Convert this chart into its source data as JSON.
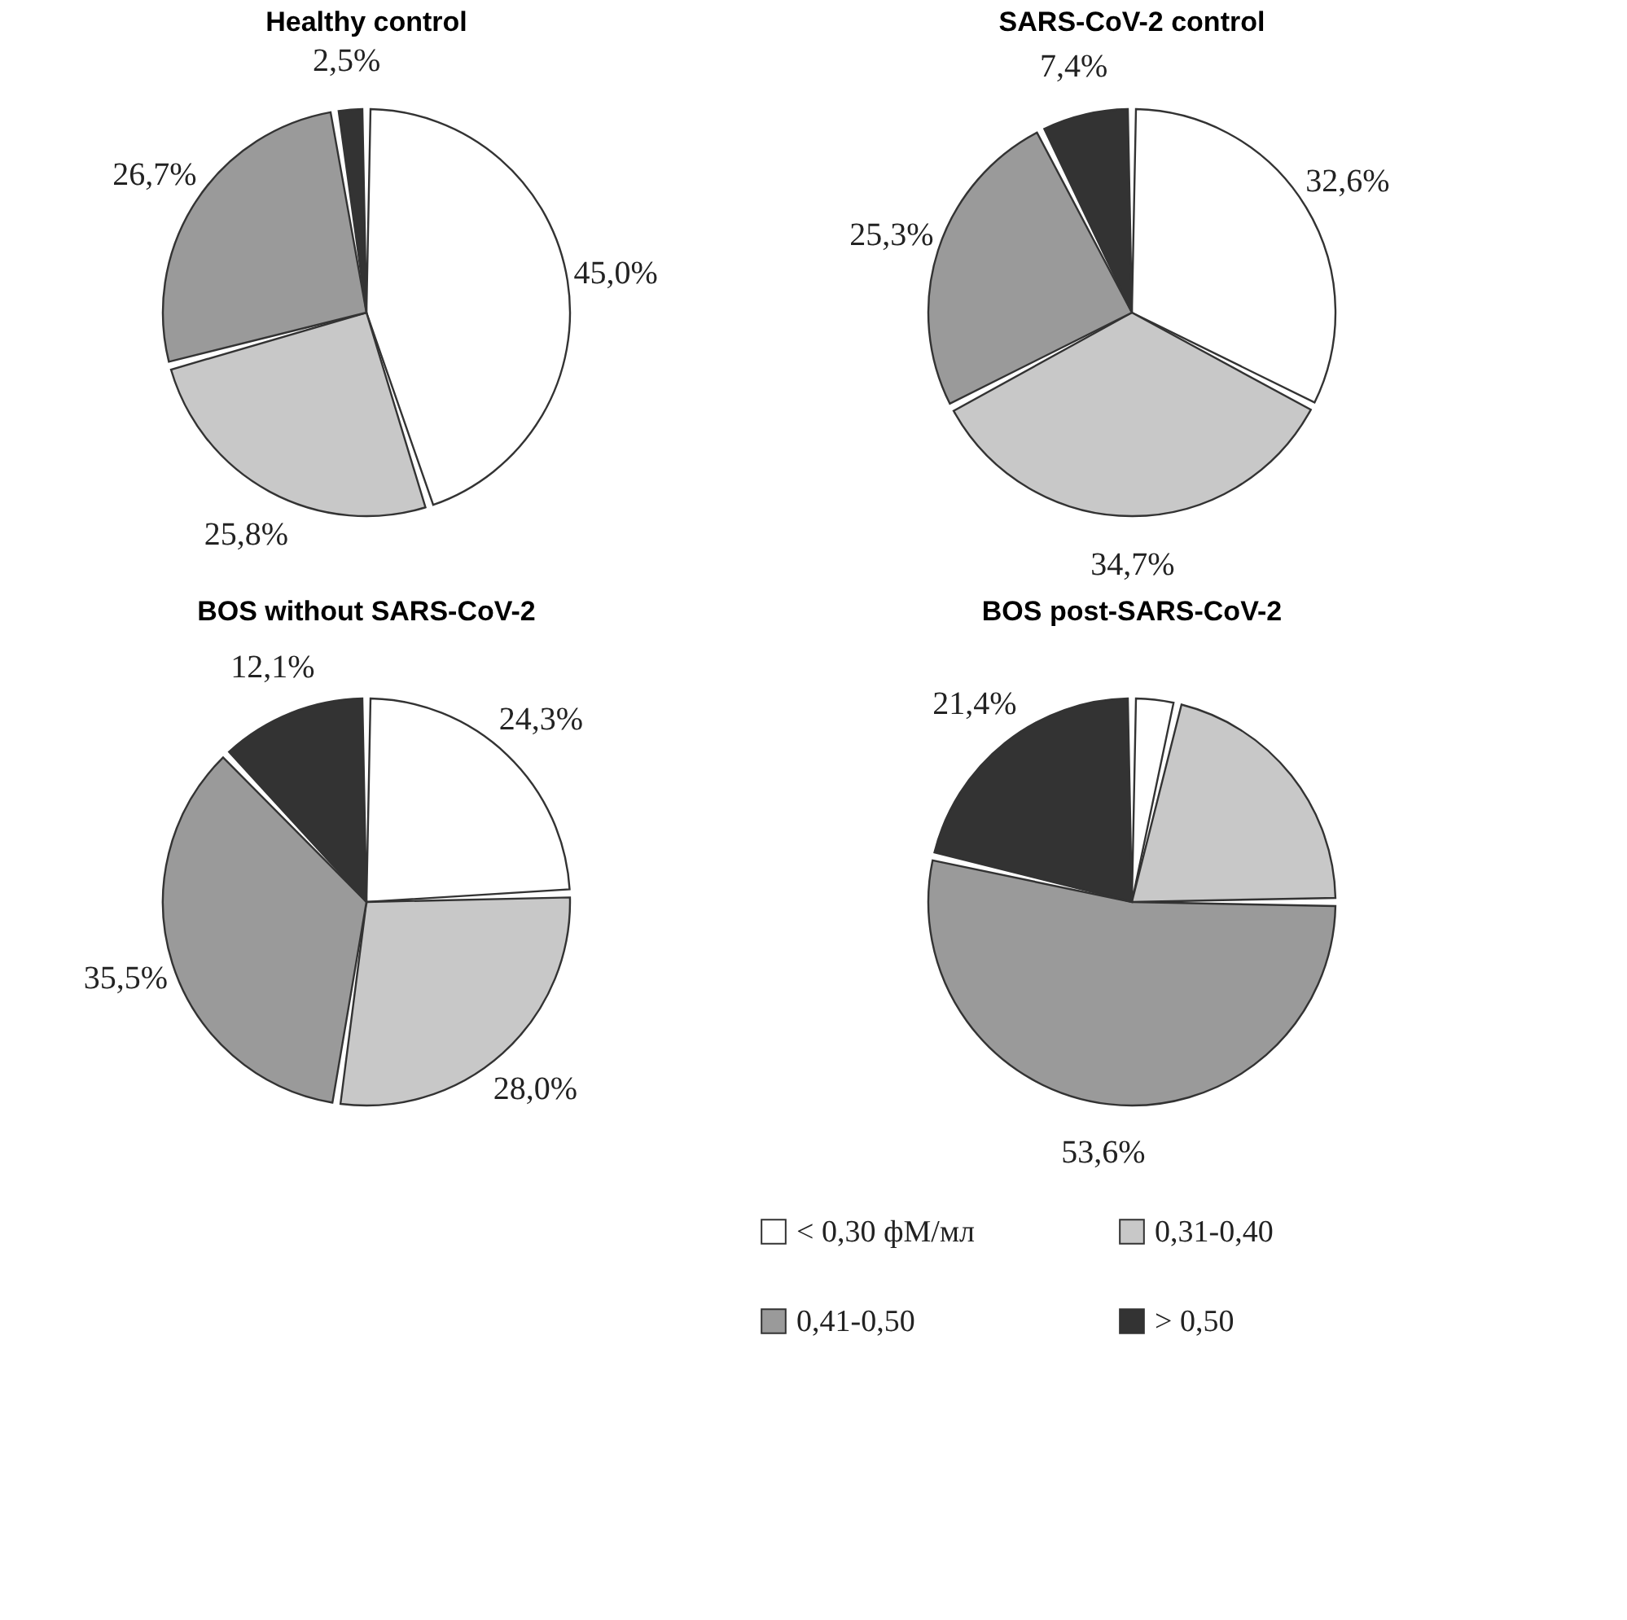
{
  "chart_data": [
    {
      "type": "pie",
      "title": "Healthy control",
      "categories": [
        "< 0,30 фМ/мл",
        "0,31-0,40",
        "0,41-0,50",
        "> 0,50"
      ],
      "values": [
        45.0,
        25.8,
        26.7,
        2.5
      ],
      "value_labels": [
        "45,0%",
        "25,8%",
        "26,7%",
        "2,5%"
      ],
      "colors": [
        "#ffffff",
        "#c8c8c8",
        "#9a9a9a",
        "#333333"
      ],
      "legend": "bottom right"
    },
    {
      "type": "pie",
      "title": "SARS-CoV-2 control",
      "categories": [
        null,
        null,
        null,
        null
      ],
      "values": [
        32.6,
        34.7,
        25.3,
        7.4
      ],
      "value_labels": [
        "32,6%",
        "34,7%",
        "25,3%",
        "7,4%"
      ],
      "colors": [
        "#ffffff",
        "#c8c8c8",
        "#9a9a9a",
        "#333333"
      ]
    },
    {
      "type": "pie",
      "title": "BOS without SARS-CoV-2",
      "categories": [
        null,
        null,
        null,
        null
      ],
      "values": [
        24.3,
        28.0,
        35.5,
        12.1
      ],
      "value_labels": [
        "24,3%",
        "28,0%",
        "35,5%",
        "12,1%"
      ],
      "colors": [
        "#ffffff",
        "#c8c8c8",
        "#9a9a9a",
        "#333333"
      ]
    },
    {
      "type": "pie",
      "title": "BOS post-SARS-CoV-2",
      "categories": [
        null,
        null,
        null,
        null
      ],
      "values": [
        3.6,
        21.4,
        53.6,
        21.4
      ],
      "value_labels": [
        null,
        null,
        "53,6%",
        "21,4%"
      ],
      "colors": [
        "#ffffff",
        "#c8c8c8",
        "#9a9a9a",
        "#333333"
      ]
    }
  ]
}
